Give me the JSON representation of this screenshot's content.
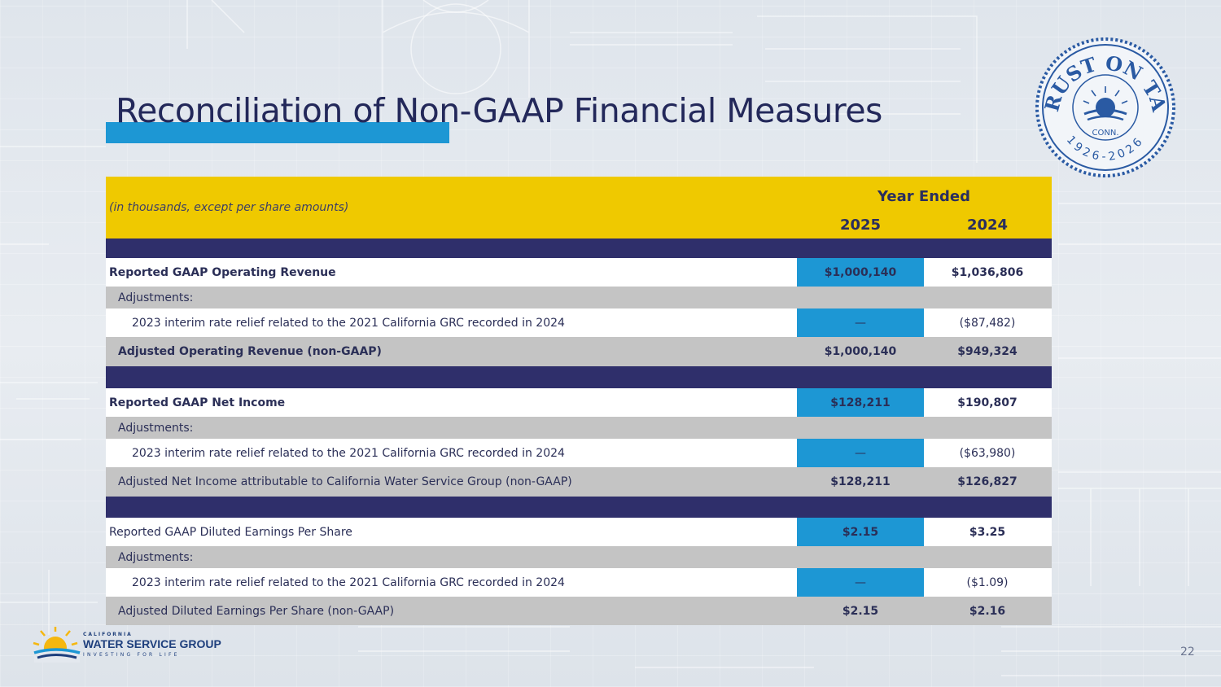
{
  "slide": {
    "title": "Reconciliation of Non-GAAP Financial Measures",
    "page_number": "22"
  },
  "seal": {
    "top_text": "TRUST ON TAP",
    "bottom_text": "1926-2026",
    "state": "CONN."
  },
  "table": {
    "units_note": "(in thousands, except per share amounts)",
    "period_header": "Year Ended",
    "year_current": "2025",
    "year_prior": "2024",
    "sections": [
      {
        "reported_label": "Reported GAAP Operating Revenue",
        "reported_2025": "$1,000,140",
        "reported_2024": "$1,036,806",
        "adjustments_label": "Adjustments:",
        "adjustment_label": "2023 interim rate relief related to the 2021 California GRC recorded in 2024",
        "adjustment_2025": "—",
        "adjustment_2024": "($87,482)",
        "adjusted_label": "Adjusted Operating Revenue (non-GAAP)",
        "adjusted_2025": "$1,000,140",
        "adjusted_2024": "$949,324"
      },
      {
        "reported_label": "Reported GAAP Net Income",
        "reported_2025": "$128,211",
        "reported_2024": "$190,807",
        "adjustments_label": "Adjustments:",
        "adjustment_label": "2023 interim rate relief related to the 2021 California GRC recorded in 2024",
        "adjustment_2025": "—",
        "adjustment_2024": "($63,980)",
        "adjusted_label": "Adjusted Net Income attributable to California Water Service Group  (non-GAAP)",
        "adjusted_2025": "$128,211",
        "adjusted_2024": "$126,827"
      },
      {
        "reported_label": "Reported GAAP Diluted Earnings Per Share",
        "reported_2025": "$2.15",
        "reported_2024": "$3.25",
        "adjustments_label": "Adjustments:",
        "adjustment_label": "2023 interim rate relief related to the 2021 California GRC recorded in 2024",
        "adjustment_2025": "—",
        "adjustment_2024": "($1.09)",
        "adjusted_label": "Adjusted Diluted Earnings Per Share (non-GAAP)",
        "adjusted_2025": "$2.15",
        "adjusted_2024": "$2.16"
      }
    ]
  },
  "logo": {
    "small_text": "CALIFORNIA",
    "main_text": "WATER SERVICE GROUP",
    "tagline": "INVESTING FOR LIFE"
  },
  "colors": {
    "title_underline": "#1d97d4",
    "header_yellow": "#efc900",
    "navy_band": "#2f2f6b",
    "highlight_blue": "#1d97d4",
    "gray_row": "#c4c4c4"
  }
}
